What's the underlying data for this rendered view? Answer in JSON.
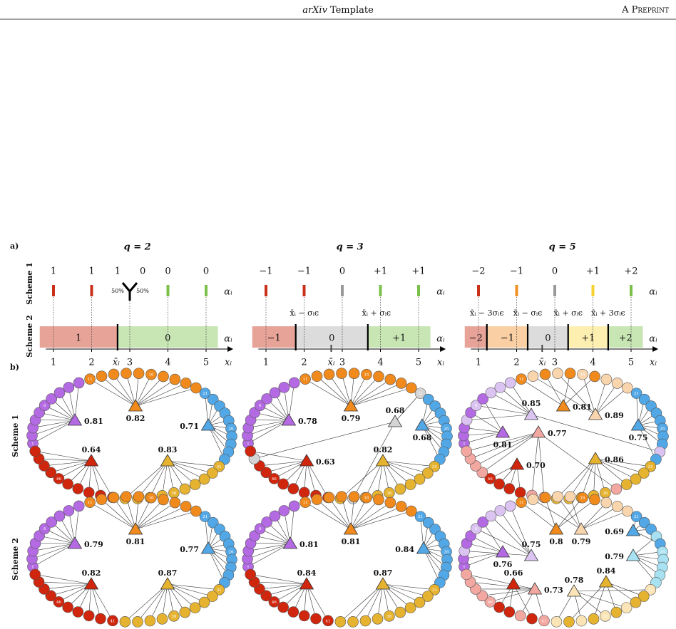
{
  "header": {
    "title_italic": "arXiv",
    "title_rest": "Template",
    "right": "A Preprint"
  },
  "panel_a": {
    "label": "a)",
    "rows": [
      "Scheme 1",
      "Scheme 2"
    ],
    "alpha_label": "αᵢ",
    "x_label": "xᵢ",
    "xbar_label": "x̄ᵢ",
    "xticks": [
      1,
      2,
      3,
      4,
      5
    ],
    "subpanels": [
      {
        "title": "q = 2",
        "alphas": [
          "1",
          "1",
          "1",
          "0",
          "0",
          "0"
        ],
        "tick_colors": [
          "#c8301a",
          "#c8301a",
          null,
          "#7cc04a",
          "#7cc04a"
        ],
        "split_labels": [
          "50%",
          "50%"
        ],
        "bands": [
          {
            "label": "1",
            "color": "#e8a398"
          },
          {
            "label": "0",
            "color": "#c8e6b4"
          }
        ]
      },
      {
        "title": "q = 3",
        "alphas": [
          "−1",
          "−1",
          "0",
          "+1",
          "+1"
        ],
        "tick_colors": [
          "#c8301a",
          "#c8301a",
          "#999999",
          "#7cc04a",
          "#7cc04a"
        ],
        "bands": [
          {
            "label": "−1",
            "color": "#e8a398"
          },
          {
            "label": "0",
            "color": "#dcdcdc"
          },
          {
            "label": "+1",
            "color": "#c8e6b4"
          }
        ],
        "boundary_labels": [
          "x̄ᵢ − σᵢϵ",
          "x̄ᵢ + σᵢϵ"
        ]
      },
      {
        "title": "q = 5",
        "alphas": [
          "−2",
          "−1",
          "0",
          "+1",
          "+2"
        ],
        "tick_colors": [
          "#c8301a",
          "#f0901e",
          "#999999",
          "#f8d030",
          "#7cc04a"
        ],
        "bands": [
          {
            "label": "−2",
            "color": "#e8a398"
          },
          {
            "label": "−1",
            "color": "#f9cfa3"
          },
          {
            "label": "0",
            "color": "#dcdcdc"
          },
          {
            "label": "+1",
            "color": "#fdefb0"
          },
          {
            "label": "+2",
            "color": "#c8e6b4"
          }
        ],
        "boundary_labels": [
          "x̄ᵢ − 3σᵢϵ",
          "x̄ᵢ − σᵢϵ",
          "x̄ᵢ + σᵢϵ",
          "x̄ᵢ + 3σᵢϵ"
        ]
      }
    ]
  },
  "panel_b": {
    "label": "b)",
    "rows": [
      "Scheme 1",
      "Scheme 2"
    ],
    "node_labels": [
      "1",
      "6",
      "11",
      "16",
      "21",
      "26",
      "31",
      "36",
      "41",
      "46"
    ],
    "networks": [
      [
        {
          "communities": [
            {
              "color": "#b36ae2",
              "value": 0.81
            },
            {
              "color": "#f08a1c",
              "value": 0.82
            },
            {
              "color": "#52a8e6",
              "value": 0.71
            },
            {
              "color": "#d0260e",
              "value": 0.64
            },
            {
              "color": "#e6b330",
              "value": 0.83
            }
          ]
        },
        {
          "communities": [
            {
              "color": "#b36ae2",
              "value": 0.78
            },
            {
              "color": "#f08a1c",
              "value": 0.79
            },
            {
              "color": "#d4d4d4",
              "value": 0.68
            },
            {
              "color": "#52a8e6",
              "value": 0.68
            },
            {
              "color": "#d0260e",
              "value": 0.63
            },
            {
              "color": "#e6b330",
              "value": 0.82
            }
          ]
        },
        {
          "communities": [
            {
              "color": "#dcc4f2",
              "value": 0.85
            },
            {
              "color": "#f08a1c",
              "value": 0.81
            },
            {
              "color": "#f9d5ae",
              "value": 0.89
            },
            {
              "color": "#b36ae2",
              "value": 0.81
            },
            {
              "color": "#f2a7a0",
              "value": 0.77
            },
            {
              "color": "#d0260e",
              "value": 0.7,
              "label": "0.70"
            },
            {
              "color": "#e6b330",
              "value": 0.86
            },
            {
              "color": "#52a8e6",
              "value": 0.75
            }
          ]
        }
      ],
      [
        {
          "communities": [
            {
              "color": "#b36ae2",
              "value": 0.79
            },
            {
              "color": "#f08a1c",
              "value": 0.81
            },
            {
              "color": "#52a8e6",
              "value": 0.77
            },
            {
              "color": "#d0260e",
              "value": 0.82
            },
            {
              "color": "#e6b330",
              "value": 0.87
            }
          ]
        },
        {
          "communities": [
            {
              "color": "#b36ae2",
              "value": 0.81
            },
            {
              "color": "#f08a1c",
              "value": 0.81
            },
            {
              "color": "#52a8e6",
              "value": 0.84
            },
            {
              "color": "#d0260e",
              "value": 0.84
            },
            {
              "color": "#e6b330",
              "value": 0.87
            }
          ]
        },
        {
          "communities": [
            {
              "color": "#b36ae2",
              "value": 0.76
            },
            {
              "color": "#dcc4f2",
              "value": 0.75
            },
            {
              "color": "#f08a1c",
              "value": 0.8
            },
            {
              "color": "#f9d5ae",
              "value": 0.79
            },
            {
              "color": "#52a8e6",
              "value": 0.69
            },
            {
              "color": "#a8e2f2",
              "value": 0.79
            },
            {
              "color": "#d0260e",
              "value": 0.66
            },
            {
              "color": "#f2a7a0",
              "value": 0.73
            },
            {
              "color": "#fbe4b5",
              "value": 0.78
            },
            {
              "color": "#e6b330",
              "value": 0.84
            }
          ]
        }
      ]
    ]
  }
}
